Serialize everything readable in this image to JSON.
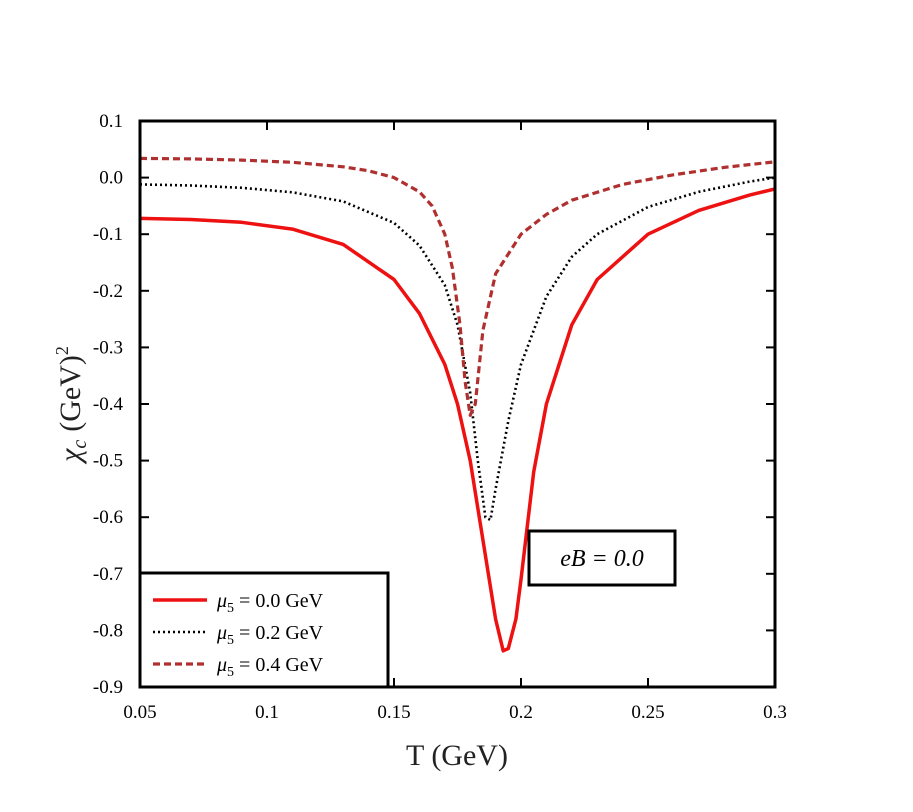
{
  "chart_data": {
    "type": "line",
    "title": "",
    "xlabel": "T (GeV)",
    "ylabel": "χ_c (GeV)^2",
    "ylabel_parts": {
      "symbol": "χ",
      "sub": "c",
      "unit": "(GeV)",
      "sup": "2"
    },
    "xlim": [
      0.05,
      0.3
    ],
    "ylim": [
      -0.9,
      0.1
    ],
    "xticks": [
      0.05,
      0.1,
      0.15,
      0.2,
      0.25,
      0.3
    ],
    "xtick_labels": [
      "0.05",
      "0.1",
      "0.15",
      "0.2",
      "0.25",
      "0.3"
    ],
    "yticks": [
      0.1,
      0.0,
      -0.1,
      -0.2,
      -0.3,
      -0.4,
      -0.5,
      -0.6,
      -0.7,
      -0.8,
      -0.9
    ],
    "ytick_labels": [
      "0.1",
      "0.0",
      "-0.1",
      "-0.2",
      "-0.3",
      "-0.4",
      "-0.5",
      "-0.6",
      "-0.7",
      "-0.8",
      "-0.9"
    ],
    "grid": false,
    "legend_position": "bottom-left",
    "annotation": "eB = 0.0",
    "series": [
      {
        "name": "μ5 = 0.0 GeV",
        "label_parts": {
          "symbol": "μ",
          "sub": "5",
          "rest": " = 0.0 GeV"
        },
        "color": "#ee1111",
        "style": "solid",
        "x": [
          0.05,
          0.07,
          0.09,
          0.11,
          0.13,
          0.15,
          0.16,
          0.17,
          0.175,
          0.18,
          0.185,
          0.19,
          0.193,
          0.195,
          0.198,
          0.2,
          0.205,
          0.21,
          0.22,
          0.23,
          0.25,
          0.27,
          0.29,
          0.3
        ],
        "y": [
          -0.072,
          -0.074,
          -0.079,
          -0.091,
          -0.118,
          -0.18,
          -0.24,
          -0.33,
          -0.4,
          -0.5,
          -0.64,
          -0.78,
          -0.836,
          -0.832,
          -0.78,
          -0.71,
          -0.52,
          -0.4,
          -0.26,
          -0.18,
          -0.1,
          -0.058,
          -0.031,
          -0.02
        ]
      },
      {
        "name": "μ5 = 0.2 GeV",
        "label_parts": {
          "symbol": "μ",
          "sub": "5",
          "rest": " = 0.2 GeV"
        },
        "color": "#000000",
        "style": "dotted",
        "x": [
          0.05,
          0.07,
          0.09,
          0.11,
          0.13,
          0.15,
          0.16,
          0.17,
          0.175,
          0.18,
          0.183,
          0.186,
          0.188,
          0.19,
          0.195,
          0.2,
          0.21,
          0.22,
          0.23,
          0.25,
          0.27,
          0.29,
          0.3
        ],
        "y": [
          -0.012,
          -0.014,
          -0.018,
          -0.026,
          -0.042,
          -0.08,
          -0.12,
          -0.19,
          -0.26,
          -0.38,
          -0.5,
          -0.6,
          -0.605,
          -0.55,
          -0.43,
          -0.33,
          -0.21,
          -0.14,
          -0.1,
          -0.052,
          -0.025,
          -0.007,
          0.0
        ]
      },
      {
        "name": "μ5 = 0.4 GeV",
        "label_parts": {
          "symbol": "μ",
          "sub": "5",
          "rest": " = 0.4 GeV"
        },
        "color": "#b03030",
        "style": "dashed",
        "x": [
          0.05,
          0.07,
          0.09,
          0.11,
          0.13,
          0.14,
          0.15,
          0.16,
          0.165,
          0.17,
          0.173,
          0.176,
          0.178,
          0.18,
          0.182,
          0.185,
          0.19,
          0.2,
          0.21,
          0.22,
          0.24,
          0.26,
          0.28,
          0.3
        ],
        "y": [
          0.034,
          0.033,
          0.031,
          0.027,
          0.019,
          0.012,
          0.0,
          -0.025,
          -0.05,
          -0.1,
          -0.16,
          -0.26,
          -0.36,
          -0.42,
          -0.4,
          -0.27,
          -0.17,
          -0.1,
          -0.065,
          -0.04,
          -0.012,
          0.005,
          0.018,
          0.028
        ]
      }
    ]
  }
}
